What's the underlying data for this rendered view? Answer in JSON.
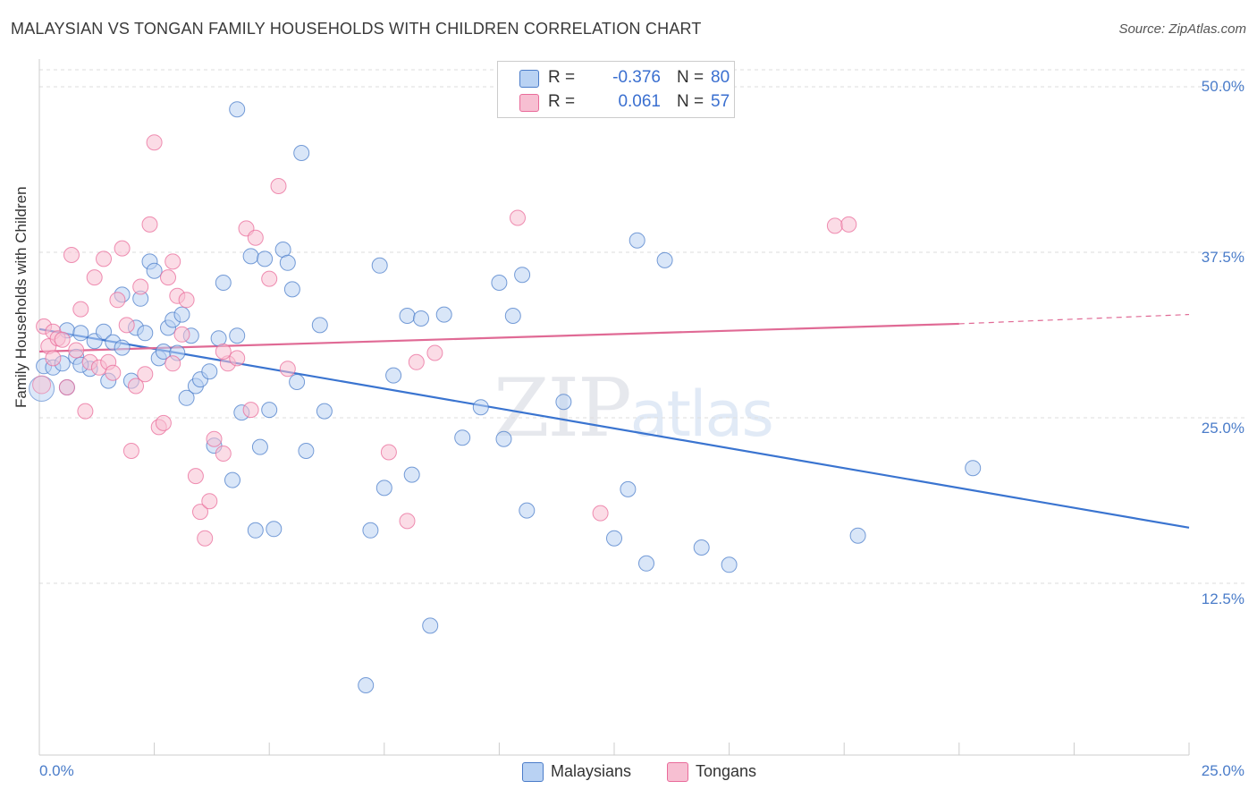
{
  "title": "MALAYSIAN VS TONGAN FAMILY HOUSEHOLDS WITH CHILDREN CORRELATION CHART",
  "source": "Source: ZipAtlas.com",
  "watermark": {
    "zip": "ZIP",
    "atlas": "atlas"
  },
  "colors": {
    "blue": "#4a7cc9",
    "blue_fill": "#b9d2f3",
    "pink": "#e96b9a",
    "pink_fill": "#f7bfd2",
    "grid": "#dddddd"
  },
  "legend": {
    "rows": [
      {
        "r_label": "R =",
        "r_value": "-0.376",
        "n_label": "N =",
        "n_value": "80"
      },
      {
        "r_label": "R =",
        "r_value": "0.061",
        "n_label": "N =",
        "n_value": "57"
      }
    ]
  },
  "bottom_legend": {
    "series1": "Malaysians",
    "series2": "Tongans"
  },
  "chart_data": {
    "type": "scatter",
    "title": "MALAYSIAN VS TONGAN FAMILY HOUSEHOLDS WITH CHILDREN CORRELATION CHART",
    "xlabel": "",
    "ylabel": "Family Households with Children",
    "xlim": [
      0,
      25
    ],
    "ylim": [
      0,
      52
    ],
    "x_tick_labels": [
      "0.0%",
      "25.0%"
    ],
    "y_ticks": [
      12.5,
      25.0,
      37.5,
      50.0
    ],
    "y_tick_labels": [
      "12.5%",
      "25.0%",
      "37.5%",
      "50.0%"
    ],
    "series": [
      {
        "name": "Malaysians",
        "r": -0.376,
        "n": 80,
        "trend": {
          "x0": 0.0,
          "y0": 31.7,
          "x1": 25.0,
          "y1": 16.7
        },
        "points": [
          [
            0.1,
            28.9
          ],
          [
            0.3,
            28.8
          ],
          [
            0.5,
            29.1
          ],
          [
            0.6,
            31.6
          ],
          [
            0.8,
            29.6
          ],
          [
            0.9,
            31.4
          ],
          [
            1.1,
            28.7
          ],
          [
            1.2,
            30.8
          ],
          [
            1.4,
            31.5
          ],
          [
            1.5,
            27.8
          ],
          [
            1.6,
            30.7
          ],
          [
            1.8,
            34.3
          ],
          [
            1.8,
            30.3
          ],
          [
            2.0,
            27.8
          ],
          [
            2.1,
            31.8
          ],
          [
            2.2,
            34.0
          ],
          [
            2.3,
            31.4
          ],
          [
            2.4,
            36.8
          ],
          [
            2.5,
            36.1
          ],
          [
            2.6,
            29.5
          ],
          [
            2.7,
            30.0
          ],
          [
            2.8,
            31.8
          ],
          [
            2.9,
            32.4
          ],
          [
            3.1,
            32.8
          ],
          [
            3.2,
            26.5
          ],
          [
            3.3,
            31.2
          ],
          [
            3.4,
            27.4
          ],
          [
            3.5,
            27.9
          ],
          [
            3.7,
            28.5
          ],
          [
            3.8,
            22.9
          ],
          [
            3.9,
            31.0
          ],
          [
            4.0,
            35.2
          ],
          [
            4.2,
            20.3
          ],
          [
            4.3,
            31.2
          ],
          [
            4.4,
            25.4
          ],
          [
            4.6,
            37.2
          ],
          [
            4.7,
            16.5
          ],
          [
            4.8,
            22.8
          ],
          [
            4.9,
            37.0
          ],
          [
            5.0,
            25.6
          ],
          [
            5.1,
            16.6
          ],
          [
            5.3,
            37.7
          ],
          [
            5.4,
            36.7
          ],
          [
            5.5,
            34.7
          ],
          [
            5.6,
            27.7
          ],
          [
            5.7,
            45.0
          ],
          [
            5.8,
            22.5
          ],
          [
            6.1,
            32.0
          ],
          [
            6.2,
            25.5
          ],
          [
            7.1,
            4.8
          ],
          [
            7.2,
            16.5
          ],
          [
            7.4,
            36.5
          ],
          [
            7.5,
            19.7
          ],
          [
            7.7,
            28.2
          ],
          [
            8.0,
            32.7
          ],
          [
            8.1,
            20.7
          ],
          [
            8.3,
            32.5
          ],
          [
            8.5,
            9.3
          ],
          [
            8.8,
            32.8
          ],
          [
            9.2,
            23.5
          ],
          [
            9.6,
            25.8
          ],
          [
            10.0,
            35.2
          ],
          [
            10.1,
            23.4
          ],
          [
            10.3,
            32.7
          ],
          [
            10.5,
            35.8
          ],
          [
            10.6,
            18.0
          ],
          [
            11.4,
            26.2
          ],
          [
            12.5,
            15.9
          ],
          [
            12.8,
            19.6
          ],
          [
            13.0,
            38.4
          ],
          [
            13.2,
            14.0
          ],
          [
            13.6,
            36.9
          ],
          [
            14.4,
            15.2
          ],
          [
            15.0,
            13.9
          ],
          [
            17.8,
            16.1
          ],
          [
            20.3,
            21.2
          ],
          [
            4.3,
            48.3
          ],
          [
            0.6,
            27.3
          ],
          [
            0.9,
            29.0
          ],
          [
            3.0,
            29.9
          ]
        ]
      },
      {
        "name": "Tongans",
        "r": 0.061,
        "n": 57,
        "trend": {
          "x0": 0.0,
          "y0": 30.0,
          "x1": 20.0,
          "y1": 32.1
        },
        "trend_dashed": {
          "x0": 20.0,
          "y0": 32.1,
          "x1": 25.0,
          "y1": 32.8
        },
        "points": [
          [
            0.1,
            31.9
          ],
          [
            0.2,
            30.4
          ],
          [
            0.3,
            31.5
          ],
          [
            0.4,
            31.0
          ],
          [
            0.5,
            30.9
          ],
          [
            0.6,
            27.3
          ],
          [
            0.7,
            37.3
          ],
          [
            0.8,
            30.1
          ],
          [
            0.9,
            33.2
          ],
          [
            1.0,
            25.5
          ],
          [
            1.1,
            29.2
          ],
          [
            1.2,
            35.6
          ],
          [
            1.3,
            28.8
          ],
          [
            1.4,
            37.0
          ],
          [
            1.5,
            29.2
          ],
          [
            1.6,
            28.4
          ],
          [
            1.7,
            33.9
          ],
          [
            1.8,
            37.8
          ],
          [
            1.9,
            32.0
          ],
          [
            2.0,
            22.5
          ],
          [
            2.1,
            27.4
          ],
          [
            2.2,
            34.9
          ],
          [
            2.3,
            28.3
          ],
          [
            2.4,
            39.6
          ],
          [
            2.5,
            45.8
          ],
          [
            2.6,
            24.3
          ],
          [
            2.7,
            24.6
          ],
          [
            2.8,
            35.6
          ],
          [
            2.9,
            36.8
          ],
          [
            3.0,
            34.2
          ],
          [
            3.1,
            31.3
          ],
          [
            3.2,
            33.9
          ],
          [
            3.4,
            20.6
          ],
          [
            3.5,
            17.9
          ],
          [
            3.6,
            15.9
          ],
          [
            3.7,
            18.7
          ],
          [
            3.8,
            23.4
          ],
          [
            4.0,
            22.3
          ],
          [
            4.1,
            29.1
          ],
          [
            4.3,
            29.5
          ],
          [
            4.5,
            39.3
          ],
          [
            4.6,
            25.6
          ],
          [
            4.7,
            38.6
          ],
          [
            5.0,
            35.5
          ],
          [
            5.2,
            42.5
          ],
          [
            5.4,
            28.7
          ],
          [
            7.6,
            22.4
          ],
          [
            8.0,
            17.2
          ],
          [
            8.2,
            29.2
          ],
          [
            8.6,
            29.9
          ],
          [
            10.4,
            40.1
          ],
          [
            12.2,
            17.8
          ],
          [
            17.3,
            39.5
          ],
          [
            17.6,
            39.6
          ],
          [
            0.3,
            29.5
          ],
          [
            2.9,
            29.1
          ],
          [
            4.0,
            30.0
          ]
        ]
      }
    ]
  }
}
